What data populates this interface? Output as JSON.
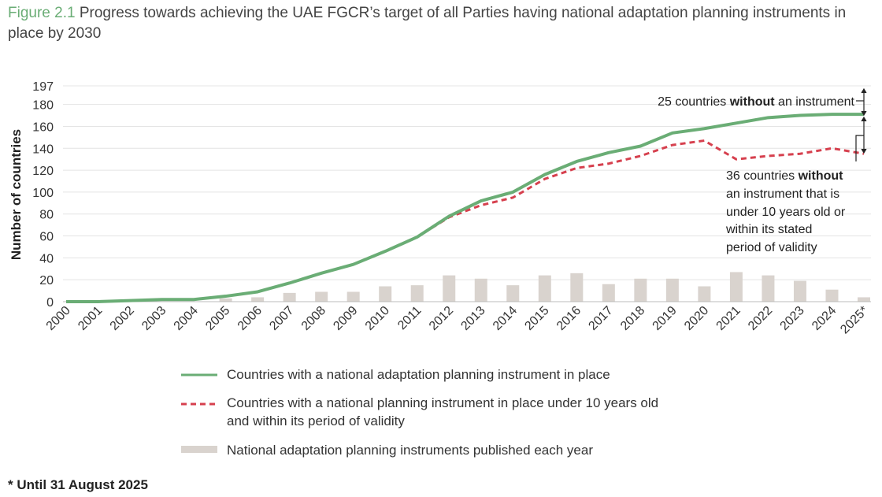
{
  "caption": {
    "figure_label": "Figure 2.1",
    "text": "Progress towards achieving the UAE FGCR’s target of all Parties having national adaptation planning instruments in place by 2030"
  },
  "footnote": "* Until 31 August 2025",
  "colors": {
    "green": "#6aad75",
    "red": "#d6404e",
    "bar": "#d9d3ce"
  },
  "chart_data": {
    "type": "line",
    "title": "Progress towards achieving the UAE FGCR’s target of all Parties having national adaptation planning instruments in place by 2030",
    "xlabel": "",
    "ylabel": "Number of countries",
    "ylim": [
      0,
      197
    ],
    "yticks": [
      0,
      20,
      40,
      60,
      80,
      100,
      120,
      140,
      160,
      180,
      197
    ],
    "categories": [
      "2000",
      "2001",
      "2002",
      "2003",
      "2004",
      "2005",
      "2006",
      "2007",
      "2008",
      "2009",
      "2010",
      "2011",
      "2012",
      "2013",
      "2014",
      "2015",
      "2016",
      "2017",
      "2018",
      "2019",
      "2020",
      "2021",
      "2022",
      "2023",
      "2024",
      "2025*"
    ],
    "series": [
      {
        "name": "Countries with a national adaptation planning instrument in place",
        "style": "solid",
        "values": [
          0,
          0,
          1,
          2,
          2,
          5,
          9,
          17,
          26,
          34,
          46,
          59,
          78,
          92,
          100,
          116,
          128,
          136,
          142,
          154,
          158,
          163,
          168,
          170,
          171,
          171
        ]
      },
      {
        "name": "Countries with a national planning instrument in place under 10 years old and within its period of validity",
        "style": "dashed",
        "values": [
          0,
          0,
          1,
          2,
          2,
          5,
          9,
          17,
          26,
          34,
          46,
          59,
          77,
          88,
          95,
          112,
          122,
          126,
          133,
          143,
          147,
          130,
          133,
          135,
          140,
          135
        ]
      },
      {
        "name": "National adaptation planning instruments published each year",
        "style": "bar",
        "values": [
          0,
          0,
          0,
          0,
          0,
          3,
          4,
          8,
          9,
          9,
          14,
          15,
          24,
          21,
          15,
          24,
          26,
          16,
          21,
          21,
          14,
          27,
          24,
          19,
          11,
          4
        ]
      }
    ],
    "annotations": [
      {
        "prefix": "25 countries ",
        "bold": "without",
        "suffix": " an instrument"
      },
      {
        "prefix": "36 countries ",
        "bold": "without",
        "lines": [
          "an instrument that is",
          "under 10 years old or",
          "within its stated",
          "period of validity"
        ]
      }
    ],
    "legend": "bottom-center"
  }
}
